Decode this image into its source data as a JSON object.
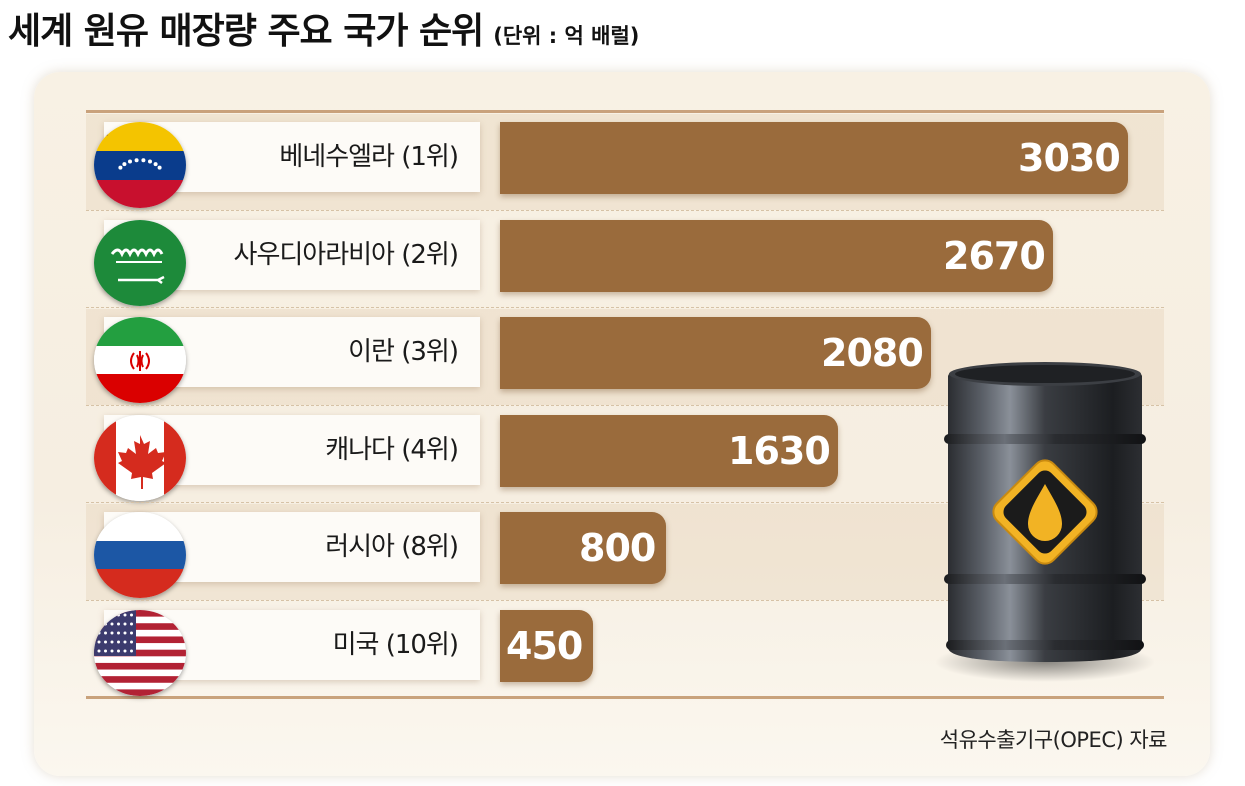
{
  "title": "세계 원유 매장량 주요 국가 순위",
  "unit": "(단위 : 억 배럴)",
  "source": "석유수출기구(OPEC) 자료",
  "colors": {
    "bar": "#9a6b3c",
    "accent_rule": "#c9a27c",
    "panel": "#f8f1e4"
  },
  "rows": [
    {
      "label": "베네수엘라 (1위)",
      "value": "3030",
      "flag": "venezuela-flag-icon"
    },
    {
      "label": "사우디아라비아 (2위)",
      "value": "2670",
      "flag": "saudi-arabia-flag-icon"
    },
    {
      "label": "이란 (3위)",
      "value": "2080",
      "flag": "iran-flag-icon"
    },
    {
      "label": "캐나다 (4위)",
      "value": "1630",
      "flag": "canada-flag-icon"
    },
    {
      "label": "러시아 (8위)",
      "value": "800",
      "flag": "russia-flag-icon"
    },
    {
      "label": "미국 (10위)",
      "value": "450",
      "flag": "usa-flag-icon"
    }
  ],
  "chart_data": {
    "type": "bar",
    "title": "세계 원유 매장량 주요 국가 순위",
    "ylabel": "(단위 : 억 배럴)",
    "categories": [
      "베네수엘라 (1위)",
      "사우디아라비아 (2위)",
      "이란 (3위)",
      "캐나다 (4위)",
      "러시아 (8위)",
      "미국 (10위)"
    ],
    "values": [
      3030,
      2670,
      2080,
      1630,
      800,
      450
    ],
    "orientation": "horizontal",
    "grid": false
  }
}
